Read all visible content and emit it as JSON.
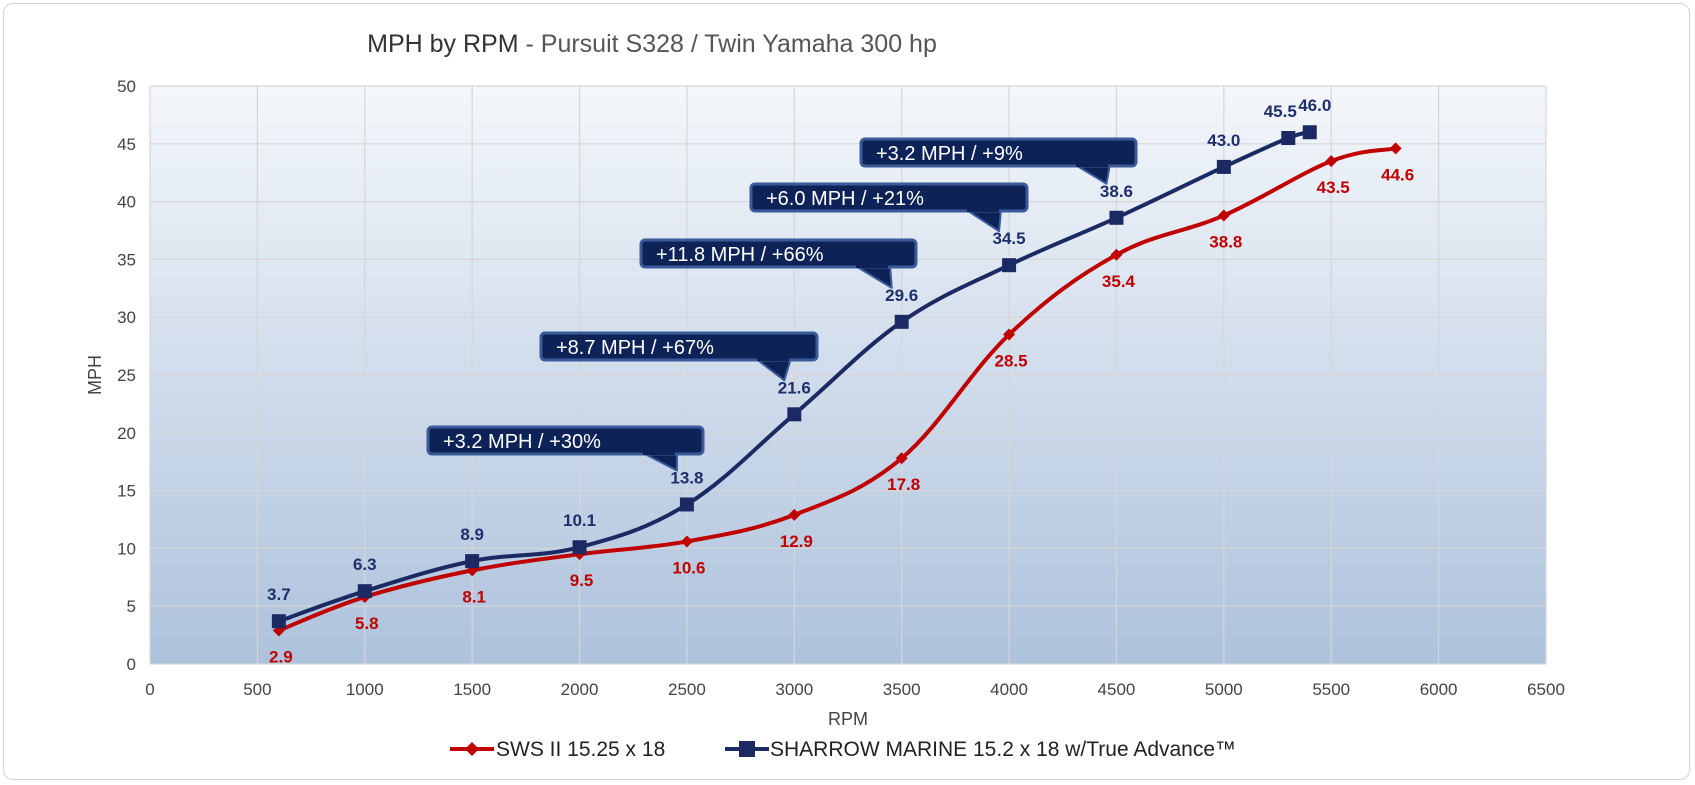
{
  "chart_data": {
    "type": "line",
    "title": "MPH by RPM",
    "title_separator": " - ",
    "subtitle": "Pursuit S328 / Twin Yamaha 300 hp",
    "xlabel": "RPM",
    "ylabel": "MPH",
    "xlim": [
      0,
      6500
    ],
    "ylim": [
      0,
      50
    ],
    "x_ticks": [
      0,
      500,
      1000,
      1500,
      2000,
      2500,
      3000,
      3500,
      4000,
      4500,
      5000,
      5500,
      6000,
      6500
    ],
    "y_ticks": [
      0,
      5,
      10,
      15,
      20,
      25,
      30,
      35,
      40,
      45,
      50
    ],
    "grid": true,
    "legend_position": "bottom",
    "series": [
      {
        "name": "SWS II 15.25 x 18",
        "color": "#c00000",
        "marker": "diamond",
        "x": [
          600,
          1000,
          1500,
          2000,
          2500,
          3000,
          3500,
          4000,
          4500,
          5000,
          5500,
          5800
        ],
        "y": [
          2.9,
          5.8,
          8.1,
          9.5,
          10.6,
          12.9,
          17.8,
          28.5,
          35.4,
          38.8,
          43.5,
          44.6
        ],
        "labels": [
          "2.9",
          "5.8",
          "8.1",
          "9.5",
          "10.6",
          "12.9",
          "17.8",
          "28.5",
          "35.4",
          "38.8",
          "43.5",
          "44.6"
        ]
      },
      {
        "name": "SHARROW MARINE 15.2 x 18 w/True Advance™",
        "color": "#1b2a63",
        "marker": "square",
        "x": [
          600,
          1000,
          1500,
          2000,
          2500,
          3000,
          3500,
          4000,
          4500,
          5000,
          5300,
          5400
        ],
        "y": [
          3.7,
          6.3,
          8.9,
          10.1,
          13.8,
          21.6,
          29.6,
          34.5,
          38.6,
          43.0,
          45.5,
          46.0
        ],
        "labels": [
          "3.7",
          "6.3",
          "8.9",
          "10.1",
          "13.8",
          "21.6",
          "29.6",
          "34.5",
          "38.6",
          "43.0",
          "45.5",
          "46.0"
        ]
      }
    ],
    "annotations": [
      {
        "text": "+3.2 MPH / +30%",
        "rpm": 2500,
        "mph": 13.8
      },
      {
        "text": "+8.7 MPH / +67%",
        "rpm": 3000,
        "mph": 21.6
      },
      {
        "text": "+11.8 MPH / +66%",
        "rpm": 3500,
        "mph": 29.6
      },
      {
        "text": "+6.0 MPH / +21%",
        "rpm": 4000,
        "mph": 34.5
      },
      {
        "text": "+3.2 MPH / +9%",
        "rpm": 4500,
        "mph": 38.6
      }
    ]
  },
  "colors": {
    "plot_top": "#f4f7fb",
    "plot_bottom": "#adc2dc",
    "callout_fill": "#0d2357",
    "callout_border": "#3a5a99"
  }
}
